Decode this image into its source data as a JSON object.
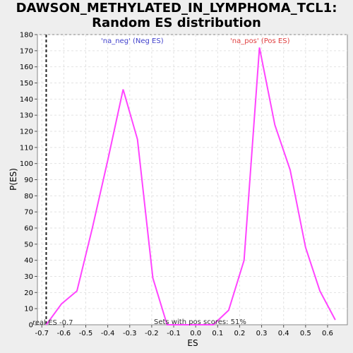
{
  "chart_data": {
    "type": "line",
    "title_line1": "DAWSON_METHYLATED_IN_LYMPHOMA_TCL1:",
    "title_line2": "Random ES distribution",
    "xlabel": "ES",
    "ylabel": "P(ES)",
    "xlim": [
      -0.72,
      0.69
    ],
    "ylim": [
      0,
      180
    ],
    "x_ticks": [
      "-0.7",
      "-0.6",
      "-0.5",
      "-0.4",
      "-0.3",
      "-0.2",
      "-0.1",
      "0.0",
      "0.1",
      "0.2",
      "0.3",
      "0.4",
      "0.5",
      "0.6"
    ],
    "y_ticks": [
      "0",
      "10",
      "20",
      "30",
      "40",
      "50",
      "60",
      "70",
      "80",
      "90",
      "100",
      "110",
      "120",
      "130",
      "140",
      "150",
      "160",
      "170",
      "180"
    ],
    "grid": true,
    "series": [
      {
        "color": "#ff44ff",
        "x": [
          -0.68,
          -0.61,
          -0.54,
          -0.47,
          -0.4,
          -0.33,
          -0.265,
          -0.195,
          -0.13,
          -0.06,
          0.01,
          0.08,
          0.15,
          0.22,
          0.29,
          0.36,
          0.43,
          0.5,
          0.565,
          0.635
        ],
        "y": [
          0,
          13,
          21,
          60,
          102,
          146,
          115,
          29,
          0,
          0,
          0,
          0,
          9,
          40,
          172,
          124,
          96,
          48,
          21,
          3
        ]
      }
    ],
    "real_es_line": {
      "x": -0.68,
      "label": "real ES -0.7"
    },
    "annotations": {
      "neg_label": "'na_neg' (Neg ES)",
      "pos_label": "'na_pos' (Pos ES)",
      "neg_color": "#4040cc",
      "pos_color": "#e04040",
      "pos_scores": "Sets with pos scores: 51%"
    }
  }
}
